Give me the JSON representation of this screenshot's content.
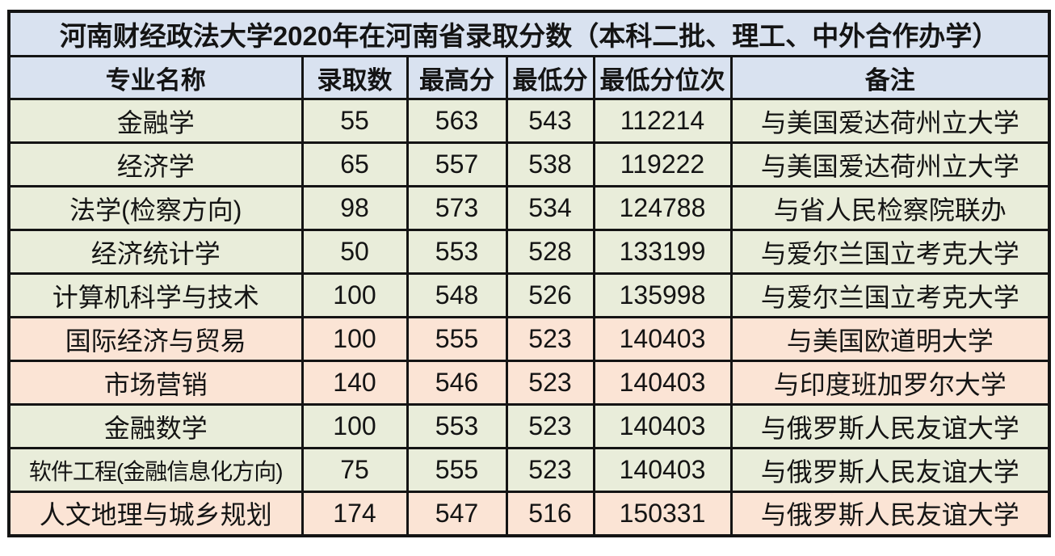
{
  "chart_data": {
    "type": "table",
    "title": "河南财经政法大学2020年在河南省录取分数（本科二批、理工、中外合作办学）",
    "columns": [
      "专业名称",
      "录取数",
      "最高分",
      "最低分",
      "最低分位次",
      "备注"
    ],
    "rows": [
      {
        "major": "金融学",
        "count": "55",
        "max": "563",
        "min": "543",
        "rank": "112214",
        "remark": "与美国爱达荷州立大学",
        "tone": "green"
      },
      {
        "major": "经济学",
        "count": "65",
        "max": "557",
        "min": "538",
        "rank": "119222",
        "remark": "与美国爱达荷州立大学",
        "tone": "green"
      },
      {
        "major": "法学(检察方向)",
        "count": "98",
        "max": "573",
        "min": "534",
        "rank": "124788",
        "remark": "与省人民检察院联办",
        "tone": "green"
      },
      {
        "major": "经济统计学",
        "count": "50",
        "max": "553",
        "min": "528",
        "rank": "133199",
        "remark": "与爱尔兰国立考克大学",
        "tone": "green"
      },
      {
        "major": "计算机科学与技术",
        "count": "100",
        "max": "548",
        "min": "526",
        "rank": "135998",
        "remark": "与爱尔兰国立考克大学",
        "tone": "green"
      },
      {
        "major": "国际经济与贸易",
        "count": "100",
        "max": "555",
        "min": "523",
        "rank": "140403",
        "remark": "与美国欧道明大学",
        "tone": "pink"
      },
      {
        "major": "市场营销",
        "count": "140",
        "max": "546",
        "min": "523",
        "rank": "140403",
        "remark": "与印度班加罗尔大学",
        "tone": "pink"
      },
      {
        "major": "金融数学",
        "count": "100",
        "max": "553",
        "min": "523",
        "rank": "140403",
        "remark": "与俄罗斯人民友谊大学",
        "tone": "green"
      },
      {
        "major": "软件工程(金融信息化方向)",
        "count": "75",
        "max": "555",
        "min": "523",
        "rank": "140403",
        "remark": "与俄罗斯人民友谊大学",
        "tone": "green"
      },
      {
        "major": "人文地理与城乡规划",
        "count": "174",
        "max": "547",
        "min": "516",
        "rank": "150331",
        "remark": "与俄罗斯人民友谊大学",
        "tone": "pink"
      }
    ]
  },
  "colors": {
    "header_bg": "#d9e2f0",
    "green_row_bg": "#e9edda",
    "pink_row_bg": "#fbe4d5",
    "border": "#141414",
    "text": "#141414",
    "page_bg": "#ffffff"
  }
}
